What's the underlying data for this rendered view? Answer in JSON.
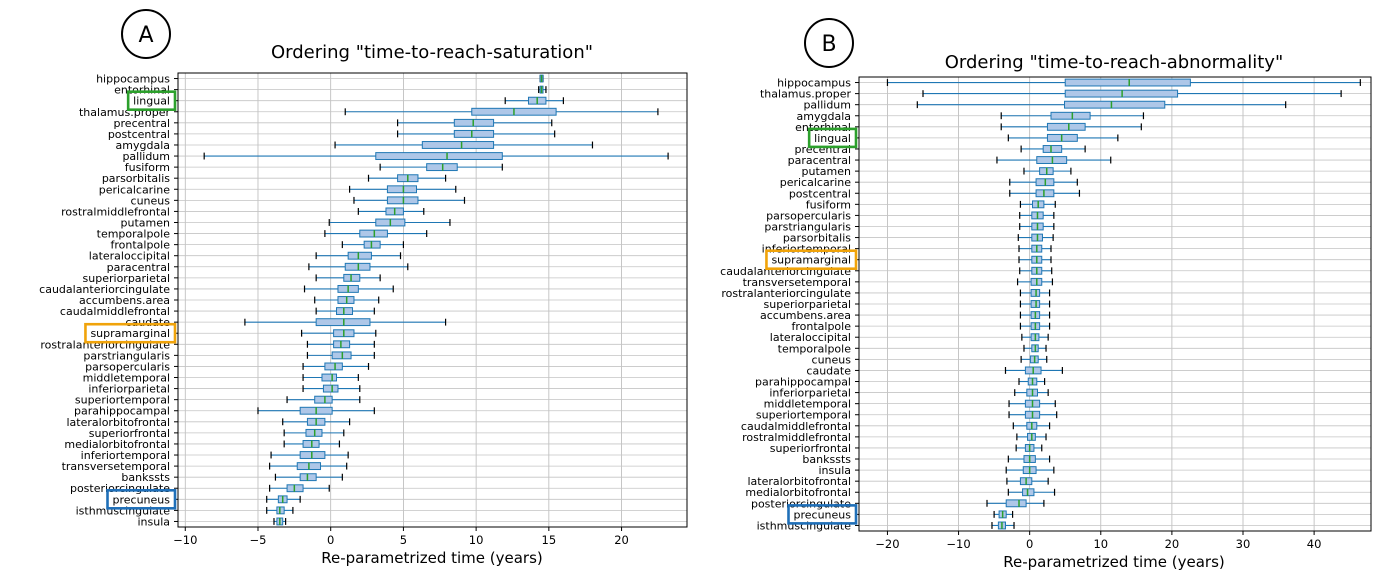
{
  "chart_data": [
    {
      "type": "boxplot",
      "panel_label": "A",
      "title": "Ordering \"time-to-reach-saturation\"",
      "xlabel": "Re-parametrized time (years)",
      "ylabel": "",
      "xlim": [
        -10.5,
        24.5
      ],
      "xticks": [
        -10,
        -5,
        0,
        5,
        10,
        15,
        20
      ],
      "grid": true,
      "box_color": "#aec7e8",
      "whisker_color": "#1f77b4",
      "median_color": "#2ca02c",
      "highlights": [
        {
          "region": "lingual",
          "color": "#2ca02c"
        },
        {
          "region": "supramarginal",
          "color": "#f0a30a"
        },
        {
          "region": "precuneus",
          "color": "#1f6fb8"
        }
      ],
      "regions": [
        {
          "name": "hippocampus",
          "min": 14.4,
          "q1": 14.4,
          "median": 14.5,
          "q3": 14.6,
          "max": 14.6
        },
        {
          "name": "entorhinal",
          "min": 14.3,
          "q1": 14.4,
          "median": 14.5,
          "q3": 14.6,
          "max": 14.8
        },
        {
          "name": "lingual",
          "min": 12.0,
          "q1": 13.6,
          "median": 14.2,
          "q3": 14.8,
          "max": 16.0
        },
        {
          "name": "thalamus.proper",
          "min": 1.0,
          "q1": 9.7,
          "median": 12.6,
          "q3": 15.5,
          "max": 22.5
        },
        {
          "name": "precentral",
          "min": 4.6,
          "q1": 8.5,
          "median": 9.8,
          "q3": 11.2,
          "max": 15.2
        },
        {
          "name": "postcentral",
          "min": 4.6,
          "q1": 8.5,
          "median": 9.7,
          "q3": 11.2,
          "max": 15.4
        },
        {
          "name": "amygdala",
          "min": 0.3,
          "q1": 6.3,
          "median": 9.0,
          "q3": 11.2,
          "max": 18.0
        },
        {
          "name": "pallidum",
          "min": -8.7,
          "q1": 3.1,
          "median": 8.0,
          "q3": 11.8,
          "max": 23.2
        },
        {
          "name": "fusiform",
          "min": 3.4,
          "q1": 6.6,
          "median": 7.7,
          "q3": 8.7,
          "max": 11.8
        },
        {
          "name": "parsorbitalis",
          "min": 2.6,
          "q1": 4.6,
          "median": 5.3,
          "q3": 6.0,
          "max": 7.9
        },
        {
          "name": "pericalcarine",
          "min": 1.3,
          "q1": 3.9,
          "median": 5.0,
          "q3": 5.9,
          "max": 8.6
        },
        {
          "name": "cuneus",
          "min": 1.6,
          "q1": 3.9,
          "median": 5.0,
          "q3": 6.0,
          "max": 9.2
        },
        {
          "name": "rostralmiddlefrontal",
          "min": 1.9,
          "q1": 3.8,
          "median": 4.4,
          "q3": 5.0,
          "max": 6.4
        },
        {
          "name": "putamen",
          "min": -0.1,
          "q1": 3.1,
          "median": 4.1,
          "q3": 5.1,
          "max": 8.2
        },
        {
          "name": "temporalpole",
          "min": -0.4,
          "q1": 2.0,
          "median": 3.0,
          "q3": 3.9,
          "max": 6.6
        },
        {
          "name": "frontalpole",
          "min": 0.8,
          "q1": 2.3,
          "median": 2.8,
          "q3": 3.4,
          "max": 5.0
        },
        {
          "name": "lateraloccipital",
          "min": -1.0,
          "q1": 1.2,
          "median": 1.9,
          "q3": 2.8,
          "max": 4.8
        },
        {
          "name": "paracentral",
          "min": -1.5,
          "q1": 1.0,
          "median": 1.9,
          "q3": 2.7,
          "max": 5.3
        },
        {
          "name": "superiorparietal",
          "min": -1.0,
          "q1": 0.9,
          "median": 1.4,
          "q3": 2.0,
          "max": 3.4
        },
        {
          "name": "caudalanteriorcingulate",
          "min": -1.8,
          "q1": 0.5,
          "median": 1.2,
          "q3": 1.9,
          "max": 4.3
        },
        {
          "name": "accumbens.area",
          "min": -1.1,
          "q1": 0.5,
          "median": 1.1,
          "q3": 1.6,
          "max": 3.3
        },
        {
          "name": "caudalmiddlefrontal",
          "min": -1.0,
          "q1": 0.4,
          "median": 0.9,
          "q3": 1.5,
          "max": 3.0
        },
        {
          "name": "caudate",
          "min": -5.9,
          "q1": -1.0,
          "median": 0.9,
          "q3": 2.7,
          "max": 7.9
        },
        {
          "name": "supramarginal",
          "min": -2.0,
          "q1": 0.2,
          "median": 0.9,
          "q3": 1.6,
          "max": 3.1
        },
        {
          "name": "rostralanteriorcingulate",
          "min": -1.6,
          "q1": 0.2,
          "median": 0.7,
          "q3": 1.3,
          "max": 3.0
        },
        {
          "name": "parstriangularis",
          "min": -1.6,
          "q1": 0.1,
          "median": 0.8,
          "q3": 1.4,
          "max": 3.0
        },
        {
          "name": "parsopercularis",
          "min": -1.9,
          "q1": -0.4,
          "median": 0.3,
          "q3": 0.8,
          "max": 2.6
        },
        {
          "name": "middletemporal",
          "min": -1.9,
          "q1": -0.6,
          "median": 0.1,
          "q3": 0.4,
          "max": 1.9
        },
        {
          "name": "inferiorparietal",
          "min": -1.9,
          "q1": -0.5,
          "median": 0.1,
          "q3": 0.5,
          "max": 2.0
        },
        {
          "name": "superiortemporal",
          "min": -3.0,
          "q1": -1.1,
          "median": -0.4,
          "q3": 0.1,
          "max": 2.0
        },
        {
          "name": "parahippocampal",
          "min": -5.0,
          "q1": -2.1,
          "median": -1.0,
          "q3": 0.1,
          "max": 3.0
        },
        {
          "name": "lateralorbitofrontal",
          "min": -3.3,
          "q1": -1.6,
          "median": -1.0,
          "q3": -0.4,
          "max": 1.3
        },
        {
          "name": "superiorfrontal",
          "min": -3.2,
          "q1": -1.7,
          "median": -1.1,
          "q3": -0.6,
          "max": 0.9
        },
        {
          "name": "medialorbitofrontal",
          "min": -3.2,
          "q1": -1.9,
          "median": -1.3,
          "q3": -0.8,
          "max": 0.6
        },
        {
          "name": "inferiortemporal",
          "min": -4.1,
          "q1": -2.1,
          "median": -1.3,
          "q3": -0.4,
          "max": 1.2
        },
        {
          "name": "transversetemporal",
          "min": -4.2,
          "q1": -2.3,
          "median": -1.5,
          "q3": -0.7,
          "max": 1.1
        },
        {
          "name": "bankssts",
          "min": -3.8,
          "q1": -2.1,
          "median": -1.6,
          "q3": -1.0,
          "max": 0.8
        },
        {
          "name": "posteriorcingulate",
          "min": -4.2,
          "q1": -3.0,
          "median": -2.5,
          "q3": -1.9,
          "max": -0.1
        },
        {
          "name": "precuneus",
          "min": -4.4,
          "q1": -3.6,
          "median": -3.3,
          "q3": -3.0,
          "max": -2.1
        },
        {
          "name": "isthmuscingulate",
          "min": -4.4,
          "q1": -3.7,
          "median": -3.5,
          "q3": -3.2,
          "max": -2.6
        },
        {
          "name": "insula",
          "min": -3.9,
          "q1": -3.7,
          "median": -3.5,
          "q3": -3.3,
          "max": -3.1
        }
      ]
    },
    {
      "type": "boxplot",
      "panel_label": "B",
      "title": "Ordering \"time-to-reach-abnormality\"",
      "xlabel": "Re-parametrized time (years)",
      "ylabel": "",
      "xlim": [
        -24,
        48
      ],
      "xticks": [
        -20,
        -10,
        0,
        10,
        20,
        30,
        40
      ],
      "grid": true,
      "box_color": "#aec7e8",
      "whisker_color": "#1f77b4",
      "median_color": "#2ca02c",
      "highlights": [
        {
          "region": "lingual",
          "color": "#2ca02c"
        },
        {
          "region": "supramarginal",
          "color": "#f0a30a"
        },
        {
          "region": "precuneus",
          "color": "#1f6fb8"
        }
      ],
      "regions": [
        {
          "name": "hippocampus",
          "min": -20.0,
          "q1": 5.0,
          "median": 14.0,
          "q3": 22.6,
          "max": 46.5
        },
        {
          "name": "thalamus.proper",
          "min": -15.0,
          "q1": 5.0,
          "median": 13.0,
          "q3": 20.8,
          "max": 43.8
        },
        {
          "name": "pallidum",
          "min": -15.8,
          "q1": 4.9,
          "median": 11.5,
          "q3": 19.0,
          "max": 36.0
        },
        {
          "name": "amygdala",
          "min": -4.0,
          "q1": 3.0,
          "median": 6.0,
          "q3": 8.5,
          "max": 16.0
        },
        {
          "name": "entorhinal",
          "min": -4.0,
          "q1": 2.5,
          "median": 5.5,
          "q3": 7.8,
          "max": 15.7
        },
        {
          "name": "lingual",
          "min": -3.0,
          "q1": 2.5,
          "median": 4.5,
          "q3": 6.7,
          "max": 12.4
        },
        {
          "name": "precentral",
          "min": -1.2,
          "q1": 1.9,
          "median": 3.0,
          "q3": 4.5,
          "max": 7.8
        },
        {
          "name": "paracentral",
          "min": -4.6,
          "q1": 1.0,
          "median": 3.2,
          "q3": 5.2,
          "max": 11.4
        },
        {
          "name": "putamen",
          "min": -0.8,
          "q1": 1.4,
          "median": 2.4,
          "q3": 3.3,
          "max": 5.8
        },
        {
          "name": "pericalcarine",
          "min": -2.8,
          "q1": 0.9,
          "median": 2.2,
          "q3": 3.4,
          "max": 6.7
        },
        {
          "name": "postcentral",
          "min": -2.8,
          "q1": 0.9,
          "median": 2.0,
          "q3": 3.4,
          "max": 7.0
        },
        {
          "name": "fusiform",
          "min": -1.3,
          "q1": 0.4,
          "median": 1.2,
          "q3": 2.0,
          "max": 3.6
        },
        {
          "name": "parsopercularis",
          "min": -1.4,
          "q1": 0.3,
          "median": 1.1,
          "q3": 1.9,
          "max": 3.4
        },
        {
          "name": "parstriangularis",
          "min": -1.4,
          "q1": 0.3,
          "median": 1.1,
          "q3": 1.9,
          "max": 3.4
        },
        {
          "name": "parsorbitalis",
          "min": -1.6,
          "q1": 0.3,
          "median": 1.1,
          "q3": 1.8,
          "max": 3.3
        },
        {
          "name": "inferiortemporal",
          "min": -1.5,
          "q1": 0.3,
          "median": 1.0,
          "q3": 1.7,
          "max": 3.0
        },
        {
          "name": "supramarginal",
          "min": -1.5,
          "q1": 0.3,
          "median": 1.0,
          "q3": 1.7,
          "max": 3.0
        },
        {
          "name": "caudalanteriorcingulate",
          "min": -1.4,
          "q1": 0.3,
          "median": 1.0,
          "q3": 1.7,
          "max": 3.1
        },
        {
          "name": "transversetemporal",
          "min": -1.7,
          "q1": 0.2,
          "median": 1.0,
          "q3": 1.7,
          "max": 3.2
        },
        {
          "name": "rostralanteriorcingulate",
          "min": -1.3,
          "q1": 0.2,
          "median": 0.9,
          "q3": 1.4,
          "max": 2.8
        },
        {
          "name": "superiorparietal",
          "min": -1.3,
          "q1": 0.2,
          "median": 0.9,
          "q3": 1.4,
          "max": 2.8
        },
        {
          "name": "accumbens.area",
          "min": -1.3,
          "q1": 0.2,
          "median": 0.8,
          "q3": 1.4,
          "max": 2.8
        },
        {
          "name": "frontalpole",
          "min": -1.3,
          "q1": 0.2,
          "median": 0.8,
          "q3": 1.4,
          "max": 2.8
        },
        {
          "name": "lateraloccipital",
          "min": -1.1,
          "q1": 0.2,
          "median": 0.8,
          "q3": 1.3,
          "max": 2.6
        },
        {
          "name": "temporalpole",
          "min": -0.8,
          "q1": 0.3,
          "median": 0.8,
          "q3": 1.2,
          "max": 2.3
        },
        {
          "name": "cuneus",
          "min": -1.2,
          "q1": 0.1,
          "median": 0.7,
          "q3": 1.2,
          "max": 2.4
        },
        {
          "name": "caudate",
          "min": -3.4,
          "q1": -0.6,
          "median": 0.5,
          "q3": 1.6,
          "max": 4.6
        },
        {
          "name": "parahippocampal",
          "min": -1.5,
          "q1": -0.2,
          "median": 0.4,
          "q3": 1.0,
          "max": 2.1
        },
        {
          "name": "inferiorparietal",
          "min": -2.1,
          "q1": -0.4,
          "median": 0.4,
          "q3": 1.1,
          "max": 2.6
        },
        {
          "name": "middletemporal",
          "min": -2.9,
          "q1": -0.6,
          "median": 0.4,
          "q3": 1.4,
          "max": 3.6
        },
        {
          "name": "superiortemporal",
          "min": -2.9,
          "q1": -0.6,
          "median": 0.4,
          "q3": 1.4,
          "max": 3.8
        },
        {
          "name": "caudalmiddlefrontal",
          "min": -2.3,
          "q1": -0.4,
          "median": 0.3,
          "q3": 1.0,
          "max": 2.8
        },
        {
          "name": "rostralmiddlefrontal",
          "min": -1.8,
          "q1": -0.3,
          "median": 0.3,
          "q3": 0.8,
          "max": 2.3
        },
        {
          "name": "superiorfrontal",
          "min": -1.9,
          "q1": -0.6,
          "median": 0.0,
          "q3": 0.6,
          "max": 1.7
        },
        {
          "name": "bankssts",
          "min": -3.0,
          "q1": -0.8,
          "median": 0.0,
          "q3": 0.8,
          "max": 2.8
        },
        {
          "name": "insula",
          "min": -3.3,
          "q1": -0.9,
          "median": 0.0,
          "q3": 0.9,
          "max": 3.4
        },
        {
          "name": "lateralorbitofrontal",
          "min": -3.2,
          "q1": -1.3,
          "median": -0.5,
          "q3": 0.3,
          "max": 2.6
        },
        {
          "name": "medialorbitofrontal",
          "min": -3.0,
          "q1": -1.0,
          "median": -0.3,
          "q3": 0.6,
          "max": 3.5
        },
        {
          "name": "posteriorcingulate",
          "min": -6.0,
          "q1": -3.3,
          "median": -1.5,
          "q3": -0.5,
          "max": 2.0
        },
        {
          "name": "precuneus",
          "min": -5.0,
          "q1": -4.3,
          "median": -3.8,
          "q3": -3.3,
          "max": -2.4
        },
        {
          "name": "isthmuscingulate",
          "min": -5.3,
          "q1": -4.4,
          "median": -3.9,
          "q3": -3.4,
          "max": -2.2
        }
      ]
    }
  ]
}
